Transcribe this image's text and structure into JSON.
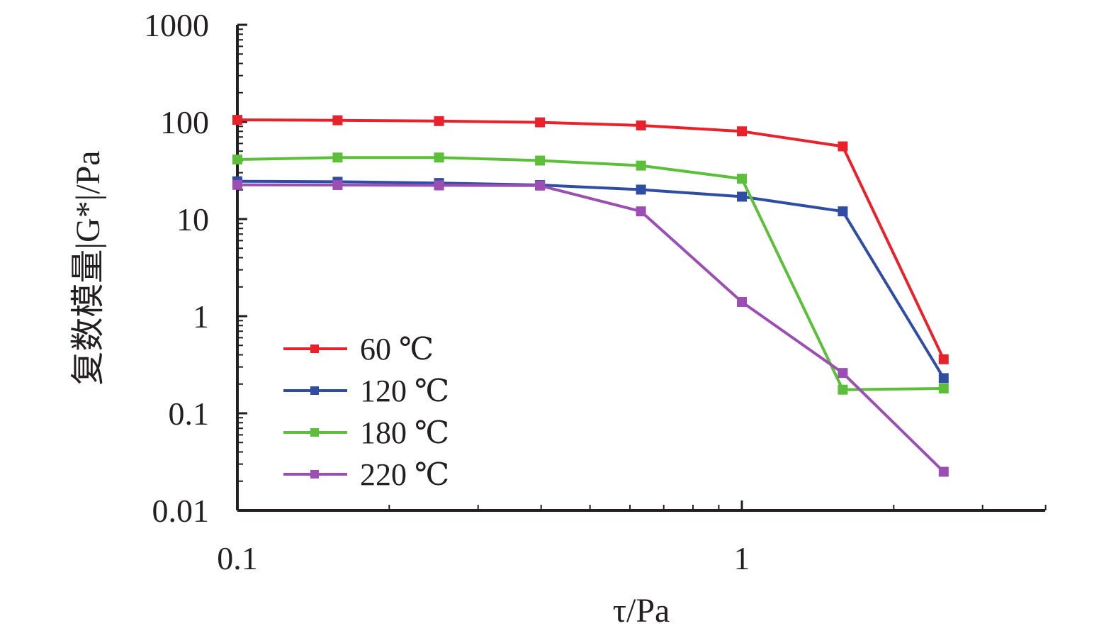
{
  "chart_data": {
    "type": "line",
    "xscale": "log",
    "yscale": "log",
    "xlim": [
      0.1,
      4.5
    ],
    "ylim": [
      0.01,
      1000
    ],
    "x_tick_labels": [
      "0.1",
      "1"
    ],
    "y_tick_labels": [
      "0.01",
      "0.1",
      "1",
      "10",
      "100",
      "1000"
    ],
    "xlabel": "τ/Pa",
    "ylabel": "复数模量|G*|/Pa",
    "legend_position": "lower-left",
    "grid": false,
    "series": [
      {
        "name": "60 ℃",
        "color": "#e8212a",
        "x": [
          0.1,
          0.158,
          0.251,
          0.398,
          0.631,
          1.0,
          1.585,
          2.512
        ],
        "y": [
          105,
          104,
          102,
          99,
          92,
          80,
          56,
          0.36
        ]
      },
      {
        "name": "120 ℃",
        "color": "#2e4da3",
        "x": [
          0.1,
          0.158,
          0.251,
          0.398,
          0.631,
          1.0,
          1.585,
          2.512
        ],
        "y": [
          24.5,
          24.2,
          23.5,
          22.4,
          20.1,
          17,
          12,
          0.23
        ]
      },
      {
        "name": "180 ℃",
        "color": "#5bbf3a",
        "x": [
          0.1,
          0.158,
          0.251,
          0.398,
          0.631,
          1.0,
          1.585,
          2.512
        ],
        "y": [
          41,
          43,
          43,
          40,
          35.5,
          26,
          0.175,
          0.18
        ]
      },
      {
        "name": "220 ℃",
        "color": "#9b4fb3",
        "x": [
          0.1,
          0.158,
          0.251,
          0.398,
          0.631,
          1.0,
          1.585,
          2.512
        ],
        "y": [
          22.5,
          22.4,
          22.2,
          22.1,
          12,
          1.4,
          0.26,
          0.025
        ]
      }
    ]
  }
}
